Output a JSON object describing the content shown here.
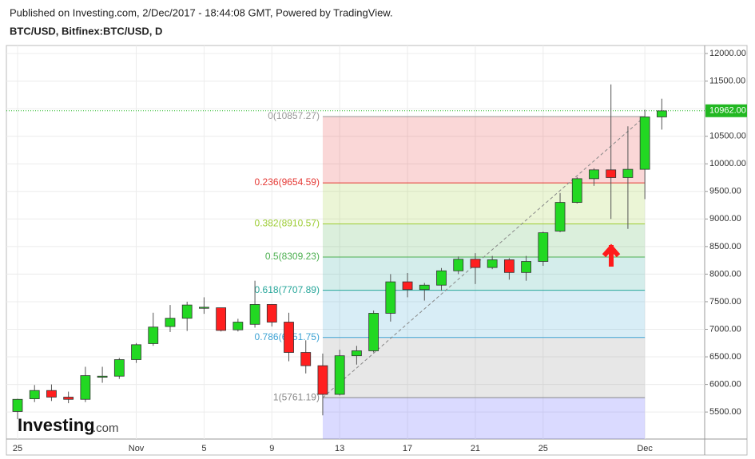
{
  "header": {
    "published": "Published on Investing.com, 2/Dec/2017 - 18:44:08 GMT, Powered by TradingView.",
    "symbol": "BTC/USD, Bitfinex:BTC/USD, D"
  },
  "logo": {
    "brand": "Investing",
    "suffix": ".com"
  },
  "chart_data": {
    "type": "candlestick",
    "categories": [
      "25",
      null,
      null,
      null,
      null,
      null,
      null,
      "Nov",
      null,
      null,
      null,
      "5",
      null,
      null,
      null,
      "9",
      null,
      null,
      null,
      "13",
      null,
      null,
      null,
      "17",
      null,
      null,
      null,
      "21",
      null,
      null,
      null,
      "25",
      null,
      null,
      null,
      null,
      null,
      "Dec",
      null
    ],
    "series": [
      {
        "up_color": "#22d822",
        "down_color": "#ff1f1f",
        "open": [
          5510,
          5740,
          5890,
          5770,
          5730,
          6130,
          6150,
          6450,
          6740,
          7050,
          7200,
          7380,
          7390,
          6990,
          7090,
          7450,
          7130,
          6580,
          6340,
          5820,
          6520,
          6610,
          7290,
          7860,
          7720,
          7800,
          8060,
          8270,
          8120,
          8260,
          8030,
          8230,
          8780,
          9300,
          9730,
          9890,
          9750,
          9900,
          10850
        ],
        "high": [
          5740,
          5990,
          6000,
          5870,
          6320,
          6320,
          6480,
          6750,
          7300,
          7440,
          7500,
          7580,
          7390,
          7190,
          7880,
          7450,
          7300,
          6800,
          6560,
          6630,
          6700,
          7340,
          8000,
          8020,
          7840,
          8110,
          8320,
          8380,
          8330,
          8290,
          8330,
          8770,
          9470,
          9760,
          9920,
          11440,
          10680,
          10980,
          11180
        ],
        "low": [
          5370,
          5680,
          5700,
          5660,
          5680,
          6030,
          6100,
          6390,
          6700,
          6950,
          6970,
          7280,
          6960,
          6960,
          7030,
          7050,
          6420,
          6200,
          5440,
          5800,
          6360,
          6580,
          7140,
          7580,
          7520,
          7700,
          8000,
          7820,
          8090,
          7900,
          7880,
          8150,
          8760,
          9280,
          9600,
          9000,
          8820,
          9360,
          10620
        ],
        "close": [
          5730,
          5890,
          5770,
          5730,
          6160,
          6150,
          6450,
          6720,
          7040,
          7200,
          7440,
          7400,
          6980,
          7130,
          7450,
          7130,
          6580,
          6340,
          5820,
          6520,
          6610,
          7290,
          7860,
          7720,
          7800,
          8060,
          8270,
          8120,
          8260,
          8030,
          8230,
          8750,
          9300,
          9730,
          9890,
          9750,
          9900,
          10850,
          10960
        ]
      }
    ],
    "fib_levels": [
      {
        "label": "0(10857.27)",
        "price": 10857.27,
        "color": "#999999"
      },
      {
        "label": "0.236(9654.59)",
        "price": 9654.59,
        "color": "#e53935"
      },
      {
        "label": "0.382(8910.57)",
        "price": 8910.57,
        "color": "#9ccc33"
      },
      {
        "label": "0.5(8309.23)",
        "price": 8309.23,
        "color": "#4caf50"
      },
      {
        "label": "0.618(7707.89)",
        "price": 7707.89,
        "color": "#26a69a"
      },
      {
        "label": "0.786(6851.75)",
        "price": 6851.75,
        "color": "#3ea3d4"
      },
      {
        "label": "1(5761.19)",
        "price": 5761.19,
        "color": "#888888"
      }
    ],
    "last_price": {
      "value": 10962,
      "label": "10962.00",
      "color": "#22b822"
    },
    "ylim": [
      5010,
      12145
    ],
    "yticks": [
      {
        "value": 5500,
        "label": "5500.00"
      },
      {
        "value": 6000,
        "label": "6000.00"
      },
      {
        "value": 6500,
        "label": "6500.00"
      },
      {
        "value": 7000,
        "label": "7000.00"
      },
      {
        "value": 7500,
        "label": "7500.00"
      },
      {
        "value": 8000,
        "label": "8000.00"
      },
      {
        "value": 8500,
        "label": "8500.00"
      },
      {
        "value": 9000,
        "label": "9000.00"
      },
      {
        "value": 9500,
        "label": "9500.00"
      },
      {
        "value": 10000,
        "label": "10000.00"
      },
      {
        "value": 10500,
        "label": "10500.00"
      },
      {
        "value": 11000,
        "label": "11000.00"
      },
      {
        "value": 11500,
        "label": "11500.00"
      },
      {
        "value": 12000,
        "label": "12000.00"
      }
    ],
    "grid": true
  }
}
